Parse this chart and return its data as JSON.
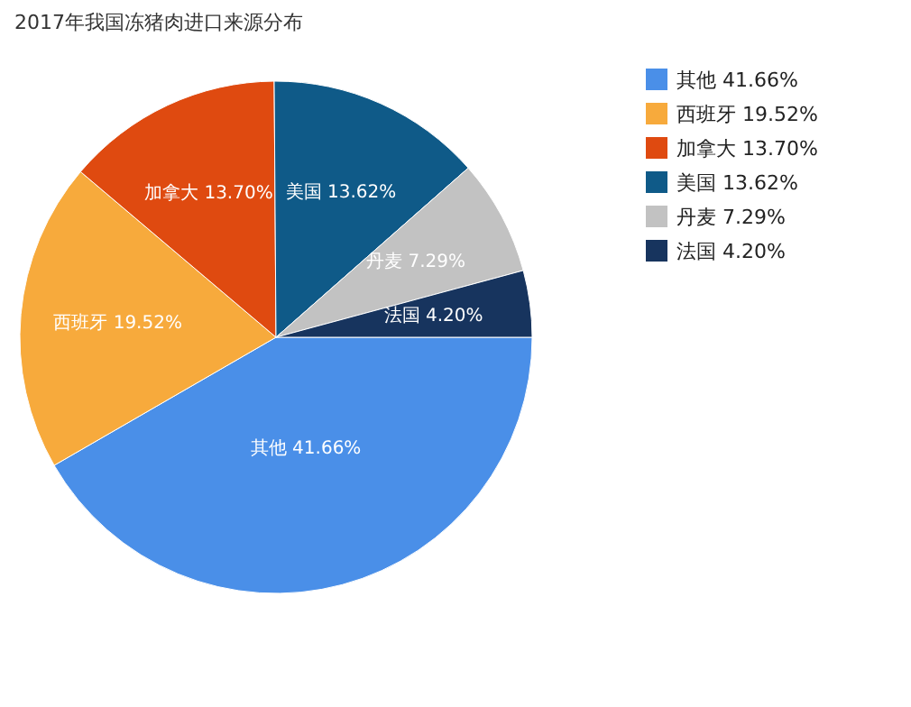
{
  "chart_data": {
    "type": "pie",
    "title": "2017年我国冻猪肉进口来源分布",
    "categories": [
      "其他",
      "西班牙",
      "加拿大",
      "美国",
      "丹麦",
      "法国"
    ],
    "values": [
      41.66,
      19.52,
      13.7,
      13.62,
      7.29,
      4.2
    ],
    "value_labels": [
      "41.66%",
      "19.52%",
      "13.70%",
      "13.62%",
      "7.29%",
      "4.20%"
    ],
    "colors": [
      "#4a8fe8",
      "#f7aa3c",
      "#df4a10",
      "#0f5a88",
      "#c2c2c2",
      "#17345e"
    ],
    "legend": "top right"
  }
}
